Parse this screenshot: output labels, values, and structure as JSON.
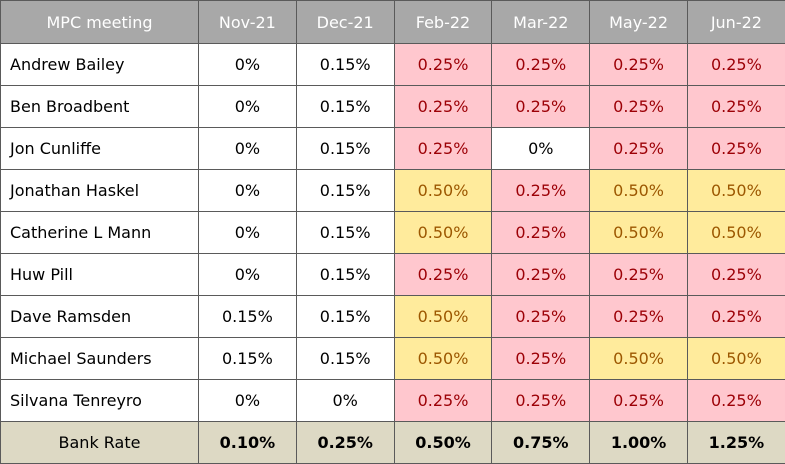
{
  "chart_data": {
    "type": "table",
    "header": {
      "row_label": "MPC meeting",
      "columns": [
        "Nov-21",
        "Dec-21",
        "Feb-22",
        "Mar-22",
        "May-22",
        "Jun-22"
      ]
    },
    "rows": [
      {
        "name": "Andrew Bailey",
        "values": [
          "0%",
          "0.15%",
          "0.25%",
          "0.25%",
          "0.25%",
          "0.25%"
        ]
      },
      {
        "name": "Ben Broadbent",
        "values": [
          "0%",
          "0.15%",
          "0.25%",
          "0.25%",
          "0.25%",
          "0.25%"
        ]
      },
      {
        "name": "Jon Cunliffe",
        "values": [
          "0%",
          "0.15%",
          "0.25%",
          "0%",
          "0.25%",
          "0.25%"
        ]
      },
      {
        "name": "Jonathan Haskel",
        "values": [
          "0%",
          "0.15%",
          "0.50%",
          "0.25%",
          "0.50%",
          "0.50%"
        ]
      },
      {
        "name": "Catherine L Mann",
        "values": [
          "0%",
          "0.15%",
          "0.50%",
          "0.25%",
          "0.50%",
          "0.50%"
        ]
      },
      {
        "name": "Huw Pill",
        "values": [
          "0%",
          "0.15%",
          "0.25%",
          "0.25%",
          "0.25%",
          "0.25%"
        ]
      },
      {
        "name": "Dave Ramsden",
        "values": [
          "0.15%",
          "0.15%",
          "0.50%",
          "0.25%",
          "0.25%",
          "0.25%"
        ]
      },
      {
        "name": "Michael Saunders",
        "values": [
          "0.15%",
          "0.15%",
          "0.50%",
          "0.25%",
          "0.50%",
          "0.50%"
        ]
      },
      {
        "name": "Silvana Tenreyro",
        "values": [
          "0%",
          "0%",
          "0.25%",
          "0.25%",
          "0.25%",
          "0.25%"
        ]
      }
    ],
    "footer": {
      "label": "Bank Rate",
      "values": [
        "0.10%",
        "0.25%",
        "0.50%",
        "0.75%",
        "1.00%",
        "1.25%"
      ]
    },
    "cell_styles": [
      [
        "plain",
        "plain",
        "pink",
        "pink",
        "pink",
        "pink"
      ],
      [
        "plain",
        "plain",
        "pink",
        "pink",
        "pink",
        "pink"
      ],
      [
        "plain",
        "plain",
        "pink",
        "plain",
        "pink",
        "pink"
      ],
      [
        "plain",
        "plain",
        "amber",
        "pink",
        "amber",
        "amber"
      ],
      [
        "plain",
        "plain",
        "amber",
        "pink",
        "amber",
        "amber"
      ],
      [
        "plain",
        "plain",
        "pink",
        "pink",
        "pink",
        "pink"
      ],
      [
        "plain",
        "plain",
        "amber",
        "pink",
        "pink",
        "pink"
      ],
      [
        "plain",
        "plain",
        "amber",
        "pink",
        "amber",
        "amber"
      ],
      [
        "plain",
        "plain",
        "pink",
        "pink",
        "pink",
        "pink"
      ]
    ],
    "colors": {
      "header_bg": "#a8a8a8",
      "pink_bg": "#ffc7ce",
      "pink_text": "#9c0006",
      "amber_bg": "#ffeb9c",
      "amber_text": "#9c5700",
      "footer_bg": "#ddd9c4"
    }
  }
}
